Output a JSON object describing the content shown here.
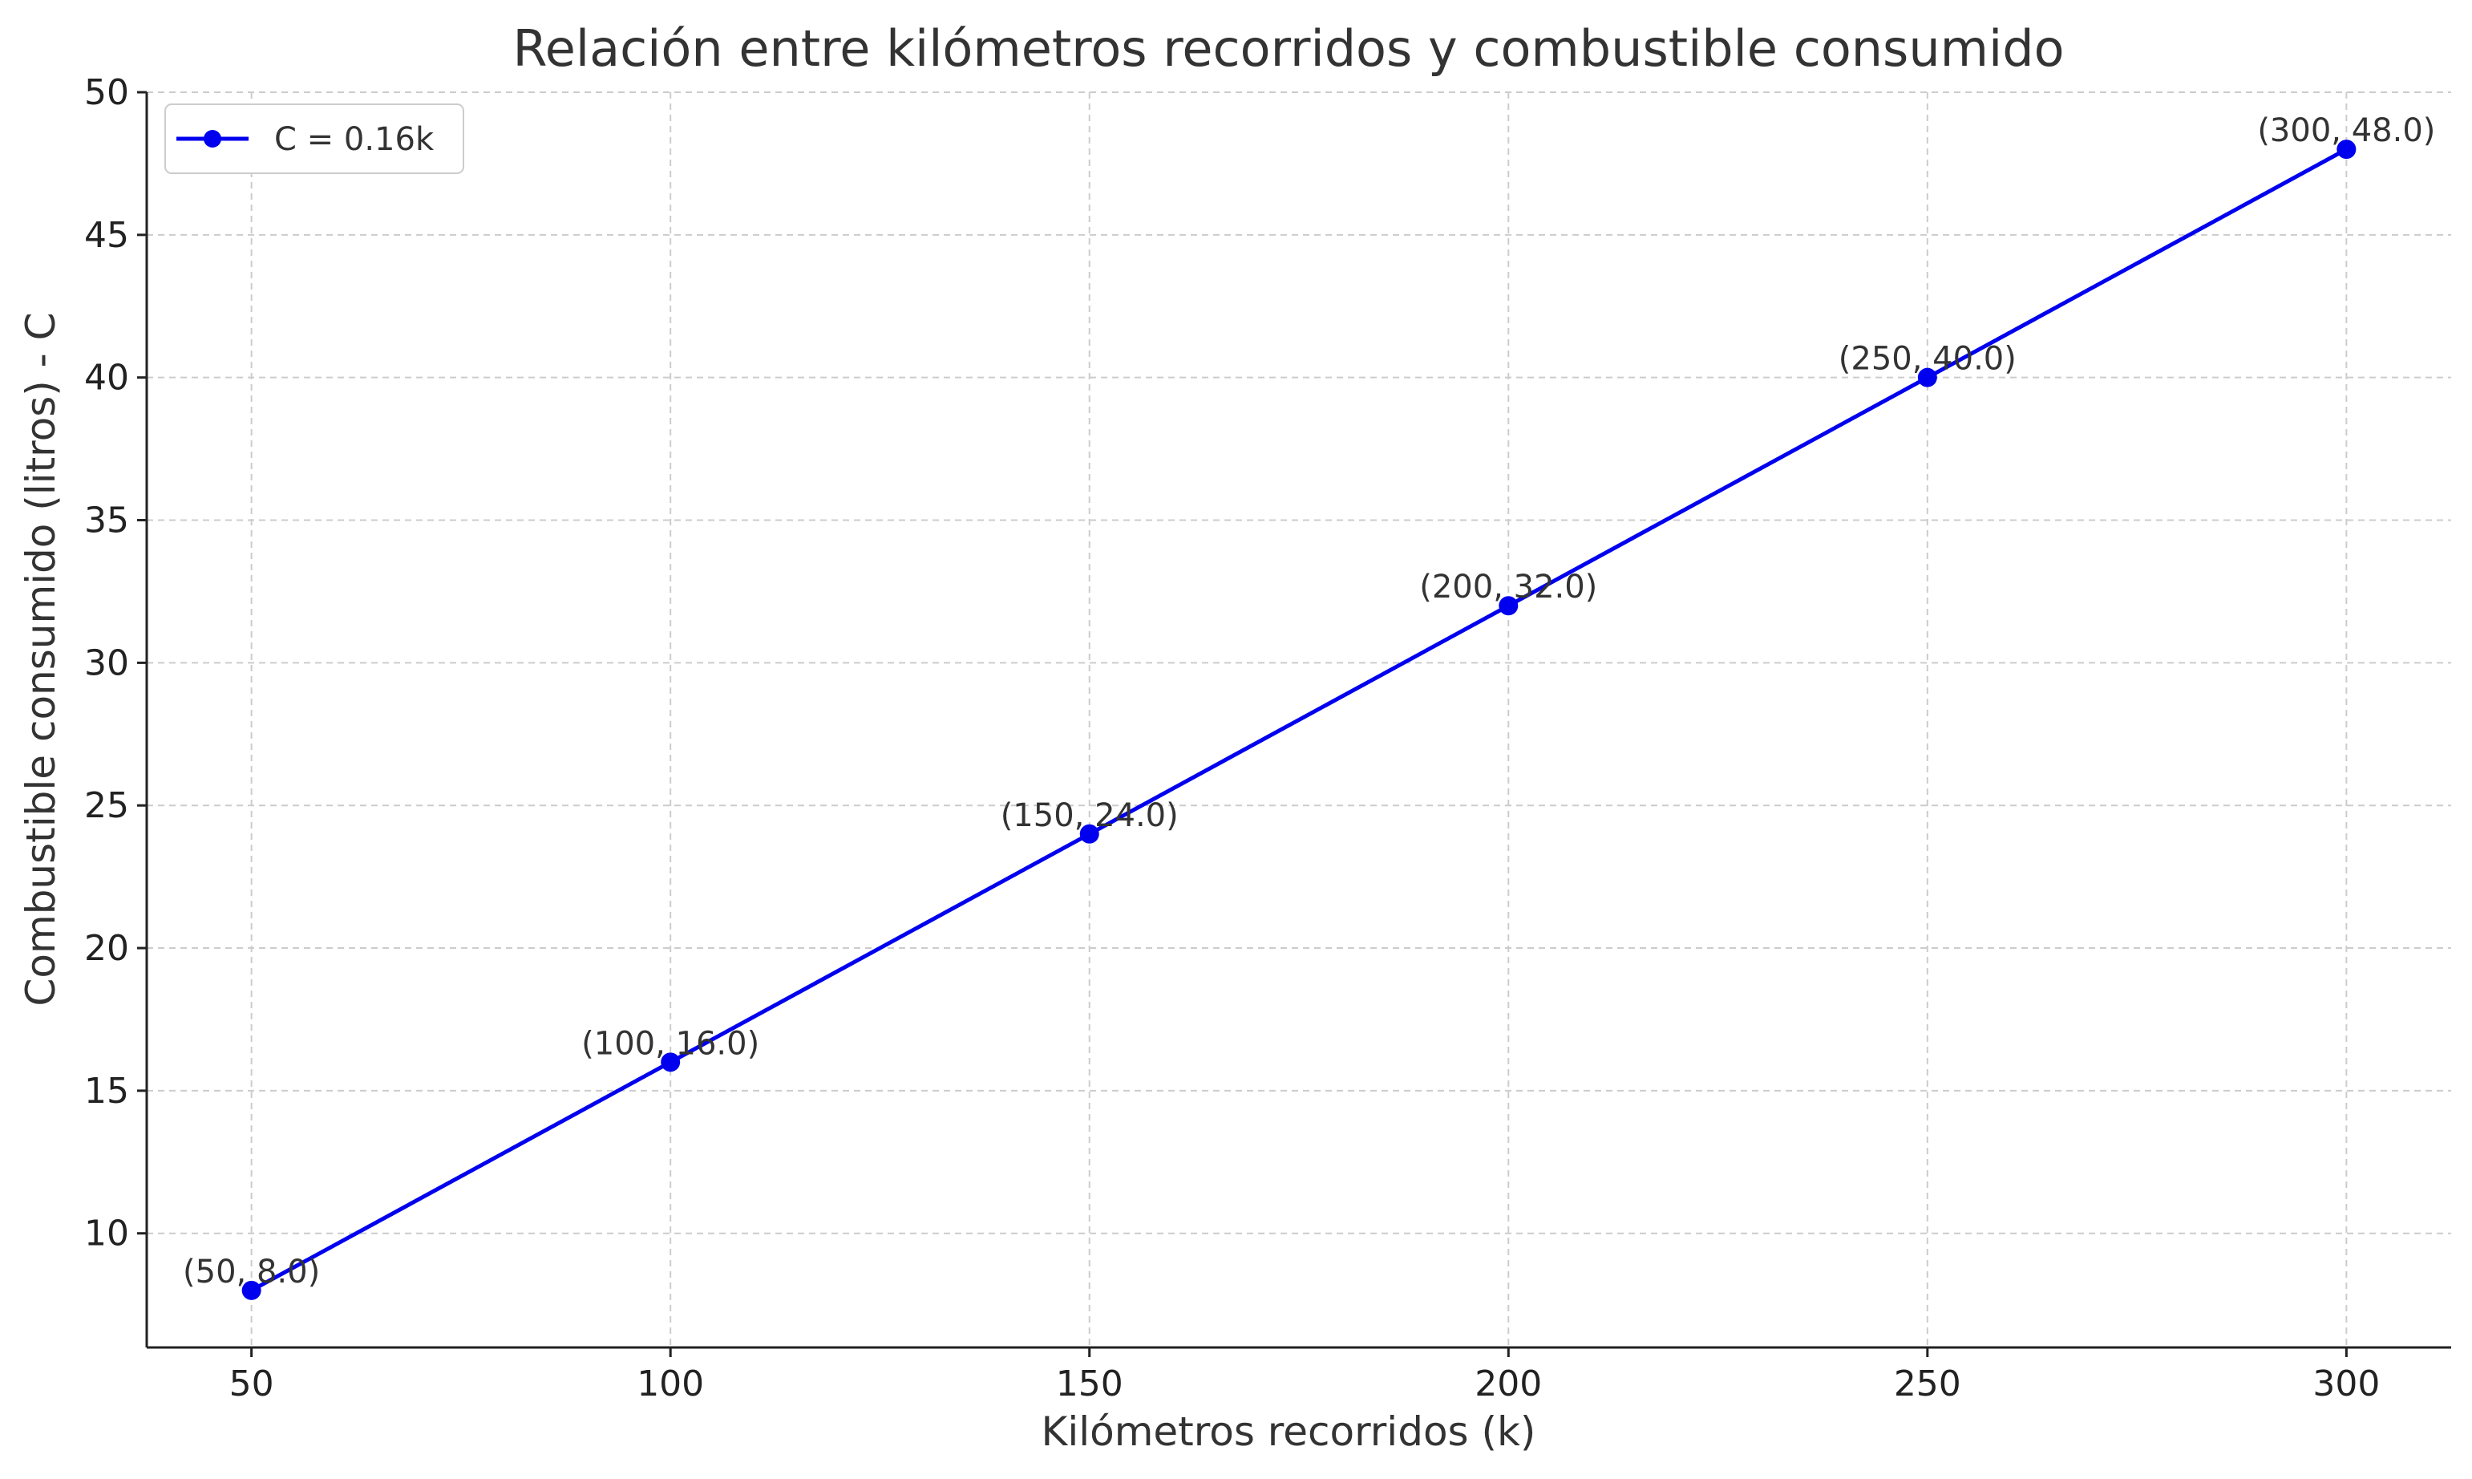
{
  "chart_data": {
    "type": "line",
    "title": "Relación entre kilómetros recorridos y combustible consumido",
    "xlabel": "Kilómetros recorridos (k)",
    "ylabel": "Combustible consumido (litros) - C",
    "xlim": [
      37.5,
      312.5
    ],
    "ylim": [
      6,
      50
    ],
    "xticks": [
      50,
      100,
      150,
      200,
      250,
      300
    ],
    "yticks": [
      10,
      15,
      20,
      25,
      30,
      35,
      40,
      45,
      50
    ],
    "grid": true,
    "legend_position": "top-left",
    "series": [
      {
        "name": "C = 0.16k",
        "color": "#0000ee",
        "marker": "circle",
        "x": [
          50,
          100,
          150,
          200,
          250,
          300
        ],
        "y": [
          8.0,
          16.0,
          24.0,
          32.0,
          40.0,
          48.0
        ],
        "point_labels": [
          "(50, 8.0)",
          "(100, 16.0)",
          "(150, 24.0)",
          "(200, 32.0)",
          "(250, 40.0)",
          "(300, 48.0)"
        ]
      }
    ]
  }
}
